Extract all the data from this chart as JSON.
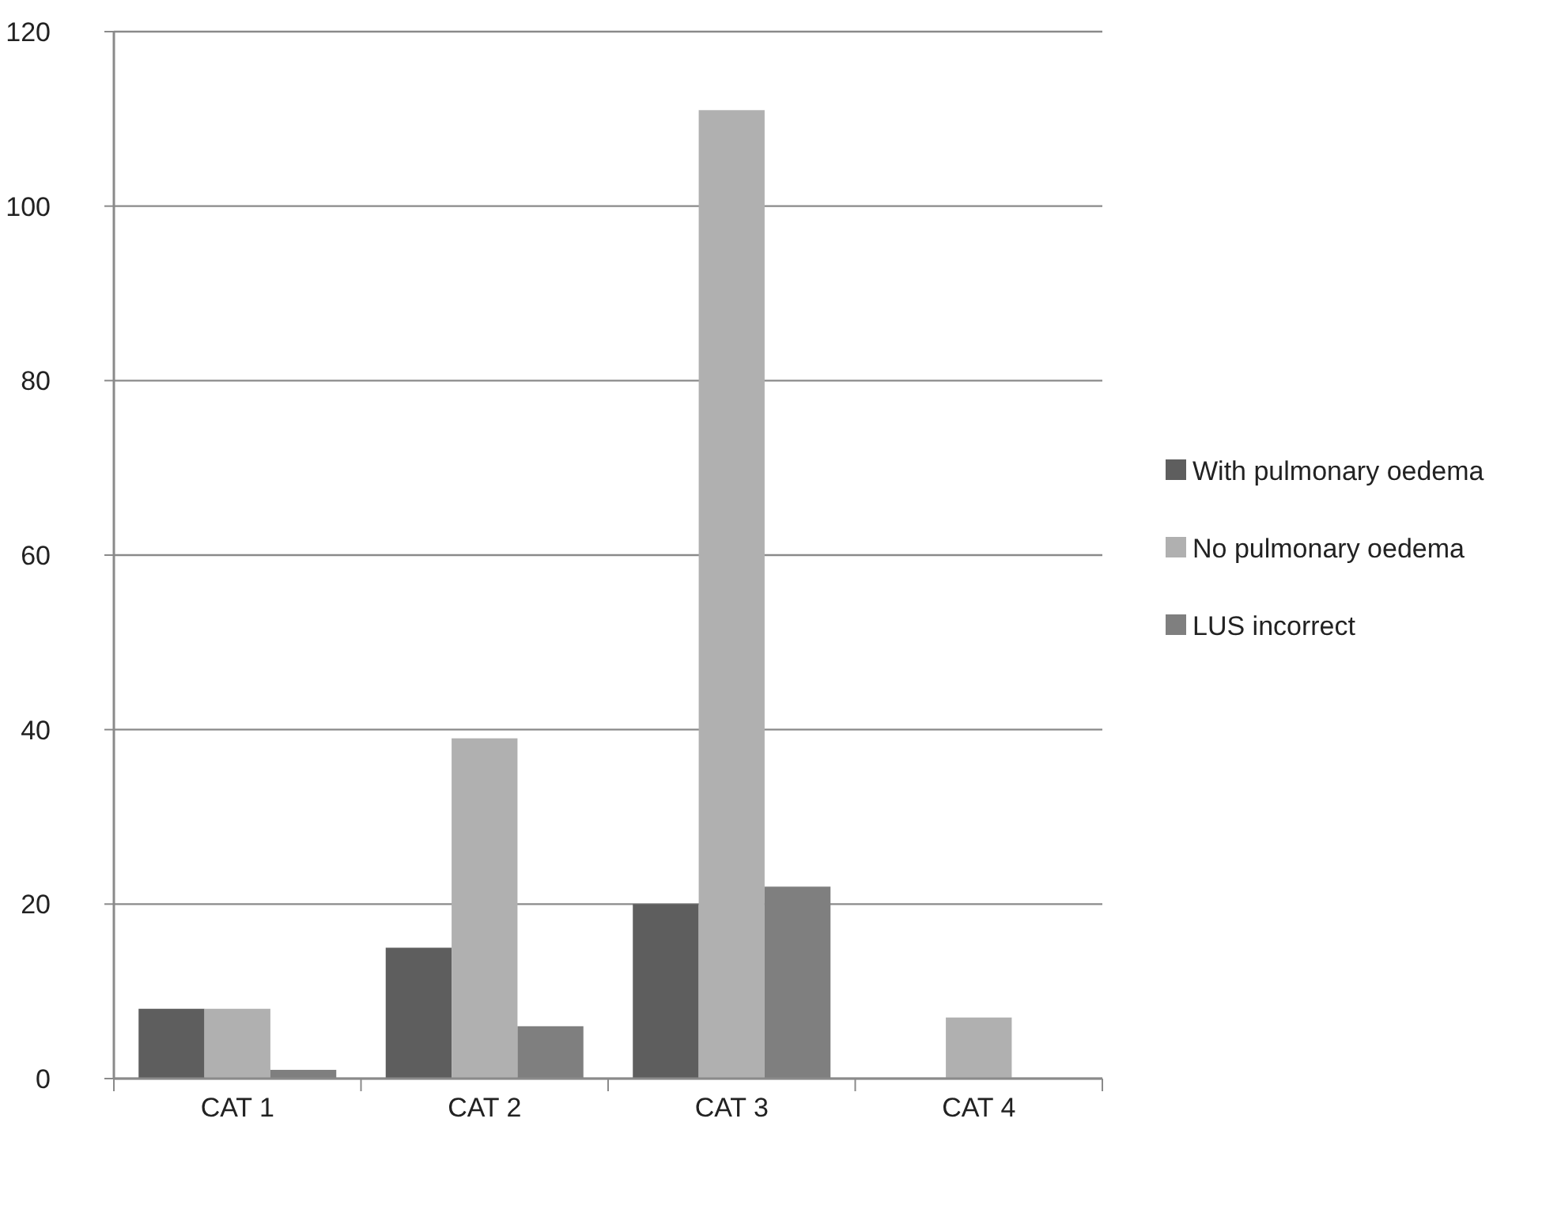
{
  "chart_data": {
    "type": "bar",
    "categories": [
      "CAT 1",
      "CAT 2",
      "CAT 3",
      "CAT 4"
    ],
    "series": [
      {
        "name": "With pulmonary oedema",
        "color": "#5e5e5e",
        "values": [
          8,
          15,
          20,
          0
        ]
      },
      {
        "name": "No pulmonary oedema",
        "color": "#b0b0b0",
        "values": [
          8,
          39,
          111,
          7
        ]
      },
      {
        "name": "LUS incorrect",
        "color": "#7f7f7f",
        "values": [
          1,
          6,
          22,
          0
        ]
      }
    ],
    "ylim": [
      0,
      120
    ],
    "yticks": [
      0,
      20,
      40,
      60,
      80,
      100,
      120
    ],
    "grid": "y",
    "legend": "right"
  }
}
